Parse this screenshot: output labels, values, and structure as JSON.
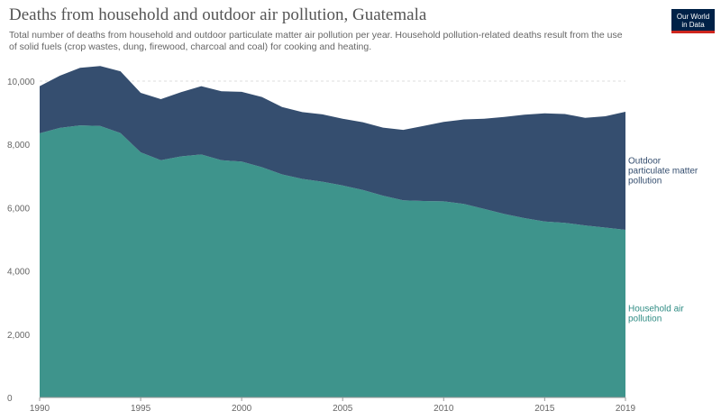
{
  "header": {
    "title": "Deaths from household and outdoor air pollution, Guatemala",
    "subtitle": "Total number of deaths from household and outdoor particulate matter air pollution per year. Household pollution-related deaths result from the use of solid fuels (crop wastes, dung, firewood, charcoal and coal) for cooking and heating."
  },
  "logo": {
    "line1": "Our World",
    "line2": "in Data"
  },
  "colors": {
    "household": "#3e948c",
    "outdoor": "#354e6f",
    "household_text": "#2f8c84",
    "outdoor_text": "#354e6f"
  },
  "chart_data": {
    "type": "area",
    "stacked": true,
    "x": [
      1990,
      1991,
      1992,
      1993,
      1994,
      1995,
      1996,
      1997,
      1998,
      1999,
      2000,
      2001,
      2002,
      2003,
      2004,
      2005,
      2006,
      2007,
      2008,
      2009,
      2010,
      2011,
      2012,
      2013,
      2014,
      2015,
      2016,
      2017,
      2018,
      2019
    ],
    "xlim": [
      1990,
      2019
    ],
    "xticks": [
      1990,
      1995,
      2000,
      2005,
      2010,
      2015,
      2019
    ],
    "ylim": [
      0,
      10000
    ],
    "yticks": [
      0,
      2000,
      4000,
      6000,
      8000,
      10000
    ],
    "ytick_labels": [
      "0",
      "2,000",
      "4,000",
      "6,000",
      "8,000",
      "10,000"
    ],
    "grid": "horizontal dashed",
    "series": [
      {
        "name": "Household air pollution",
        "label_lines": [
          "Household air",
          "pollution"
        ],
        "color": "#3e948c",
        "values": [
          8350,
          8520,
          8600,
          8580,
          8360,
          7750,
          7500,
          7620,
          7680,
          7500,
          7460,
          7280,
          7050,
          6910,
          6820,
          6700,
          6560,
          6380,
          6230,
          6210,
          6200,
          6120,
          5960,
          5800,
          5670,
          5560,
          5520,
          5440,
          5370,
          5300
        ]
      },
      {
        "name": "Outdoor particulate matter pollution",
        "label_lines": [
          "Outdoor",
          "particulate matter",
          "pollution"
        ],
        "color": "#354e6f",
        "values": [
          1490,
          1650,
          1820,
          1900,
          1950,
          1880,
          1930,
          2030,
          2160,
          2180,
          2200,
          2220,
          2130,
          2110,
          2130,
          2110,
          2140,
          2150,
          2230,
          2370,
          2510,
          2670,
          2850,
          3070,
          3270,
          3420,
          3440,
          3400,
          3520,
          3730
        ]
      }
    ]
  }
}
